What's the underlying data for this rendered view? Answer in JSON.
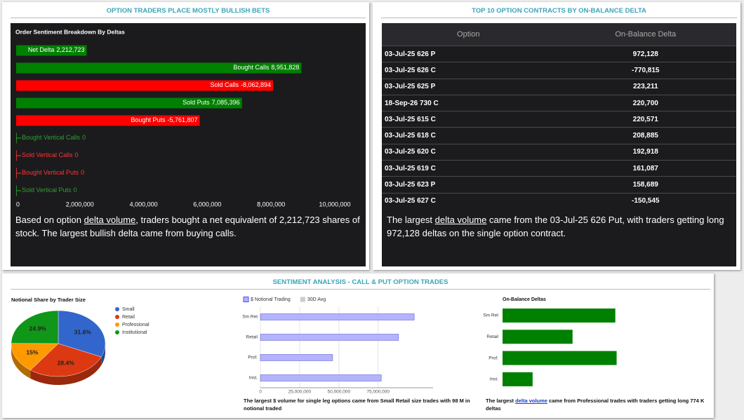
{
  "headers": [
    "OPTION TRADERS PLACE MOSTLY BULLISH BETS",
    "TOP 10 OPTION CONTRACTS BY ON-BALANCE DELTA",
    "SENTIMENT ANALYSIS - CALL & PUT OPTION TRADES"
  ],
  "chart_data": [
    {
      "type": "bar",
      "orientation": "horizontal",
      "title": "Order Sentiment Breakdown By Deltas",
      "categories": [
        "Net Delta",
        "Bought Calls",
        "Sold Calls",
        "Sold Puts",
        "Bought Puts",
        "Bought Vertical Calls",
        "Sold Vertical Calls",
        "Bought Vertical Puts",
        "Sold Vertical Puts"
      ],
      "values": [
        2212723,
        8951828,
        -8062894,
        7085396,
        -5761807,
        0,
        0,
        0,
        0
      ],
      "value_labels": [
        "2,212,723",
        "8,951,828",
        "-8,062,894",
        "7,085,396",
        "-5,761,807",
        "0",
        "0",
        "0",
        "0"
      ],
      "colors": [
        "#008000",
        "#008000",
        "#ff0000",
        "#008000",
        "#ff0000",
        "#2ea02e",
        "#ff3333",
        "#ff3333",
        "#2ea02e"
      ],
      "xlim": [
        0,
        10000000
      ],
      "xticks": [
        0,
        {
          "value": 2000000,
          "label": "2,000,000"
        },
        {
          "value": 4000000,
          "label": "4,000,000"
        },
        {
          "value": 6000000,
          "label": "6,000,000"
        },
        {
          "value": 8000000,
          "label": "8,000,000"
        },
        {
          "value": 10000000,
          "label": "10,000,000"
        }
      ]
    },
    {
      "type": "pie",
      "title": "Notional Share by Trader Size",
      "categories": [
        "Small",
        "Retail",
        "Professional",
        "Institutional"
      ],
      "values": [
        31.6,
        28.4,
        15,
        24.9
      ],
      "value_labels": [
        "31.6%",
        "28.4%",
        "15%",
        "24.9%"
      ],
      "colors": [
        "#3366cc",
        "#dc3912",
        "#ff9900",
        "#109618"
      ],
      "legend": "right"
    },
    {
      "type": "bar",
      "orientation": "horizontal",
      "categories": [
        "Sm Ret",
        "Retail",
        "Prof.",
        "Inst."
      ],
      "series": [
        {
          "name": "$ Notional Trading",
          "color": "#b3b3ff",
          "values": [
            98000000,
            88000000,
            46000000,
            77000000
          ]
        },
        {
          "name": "30D Avg",
          "color": "#cccccc",
          "values": [
            null,
            null,
            null,
            null
          ]
        }
      ],
      "xlim": [
        0,
        110000000
      ],
      "xticks": [
        0,
        {
          "value": 25000000,
          "label": "25,000,000"
        },
        {
          "value": 50000000,
          "label": "50,000,000"
        },
        {
          "value": 75000000,
          "label": "75,000,000"
        }
      ],
      "legend": "top",
      "grid": true
    },
    {
      "type": "bar",
      "orientation": "horizontal",
      "title": "On-Balance Deltas",
      "categories": [
        "Sm Ret",
        "Retail",
        "Prof.",
        "Inst."
      ],
      "values": [
        765000,
        475000,
        774000,
        204000
      ],
      "color": "#008000",
      "xlim": [
        0,
        800000
      ]
    }
  ],
  "table": {
    "columns": [
      "Option",
      "On-Balance Delta"
    ],
    "rows": [
      [
        "03-Jul-25 626 P",
        "972,128"
      ],
      [
        "03-Jul-25 626 C",
        "-770,815"
      ],
      [
        "03-Jul-25 625 P",
        "223,211"
      ],
      [
        "18-Sep-26 730 C",
        "220,700"
      ],
      [
        "03-Jul-25 615 C",
        "220,571"
      ],
      [
        "03-Jul-25 618 C",
        "208,885"
      ],
      [
        "03-Jul-25 620 C",
        "192,918"
      ],
      [
        "03-Jul-25 619 C",
        "161,087"
      ],
      [
        "03-Jul-25 623 P",
        "158,689"
      ],
      [
        "03-Jul-25 627 C",
        "-150,545"
      ]
    ]
  },
  "notes": [
    {
      "before": "Based on option ",
      "link": "delta volume",
      "after": ", traders bought a net equivalent of 2,212,723 shares of stock. The largest bullish delta came from buying calls."
    },
    {
      "before": "The largest ",
      "link": "delta volume",
      "after": " came from the 03-Jul-25 626 Put, with traders getting long 972,128 deltas on the single option contract."
    },
    {
      "text": "The largest $ volume for single leg options came from Small Retail size trades with 98 M in notional traded"
    },
    {
      "before": "The largest ",
      "link": "delta volume",
      "after": " came from Professional trades with traders getting long 774 K deltas"
    }
  ]
}
